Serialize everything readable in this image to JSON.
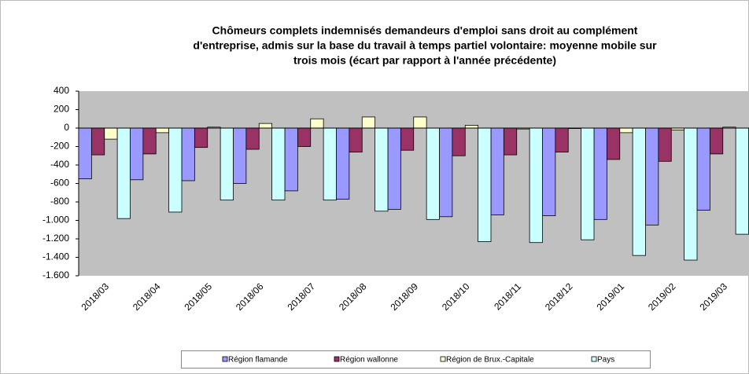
{
  "chart_data": {
    "type": "bar",
    "title": [
      "Chômeurs complets indemnisés demandeurs d'emploi sans droit au complément",
      "d'entreprise, admis sur la base du travail à temps partiel volontaire: moyenne mobile sur",
      "trois mois (écart par rapport à l'année précédente)"
    ],
    "categories": [
      "2018/03",
      "2018/04",
      "2018/05",
      "2018/06",
      "2018/07",
      "2018/08",
      "2018/09",
      "2018/10",
      "2018/11",
      "2018/12",
      "2019/01",
      "2019/02",
      "2019/03"
    ],
    "series": [
      {
        "name": "Région flamande",
        "color": "#9999ff",
        "values": [
          -550,
          -560,
          -570,
          -600,
          -680,
          -770,
          -880,
          -960,
          -940,
          -950,
          -990,
          -1050,
          -890
        ]
      },
      {
        "name": "Région wallonne",
        "color": "#993366",
        "values": [
          -290,
          -280,
          -210,
          -230,
          -200,
          -260,
          -240,
          -300,
          -290,
          -260,
          -340,
          -360,
          -280
        ]
      },
      {
        "name": "Région de Brux.-Capitale",
        "color": "#ffffcc",
        "values": [
          -120,
          -50,
          10,
          50,
          100,
          120,
          120,
          30,
          -10,
          -5,
          -50,
          -20,
          10
        ]
      },
      {
        "name": "Pays",
        "color": "#ccffff",
        "values": [
          -980,
          -910,
          -780,
          -780,
          -780,
          -900,
          -990,
          -1230,
          -1240,
          -1210,
          -1380,
          -1430,
          -1150
        ]
      }
    ],
    "ylim": [
      -1600,
      400
    ],
    "yticks": [
      {
        "value": -1600,
        "label": "-1.600"
      },
      {
        "value": -1400,
        "label": "-1.400"
      },
      {
        "value": -1200,
        "label": "-1.200"
      },
      {
        "value": -1000,
        "label": "-1.000"
      },
      -800,
      -600,
      -400,
      -200,
      0,
      200,
      400
    ],
    "plot_background": "#c0c0c0"
  }
}
